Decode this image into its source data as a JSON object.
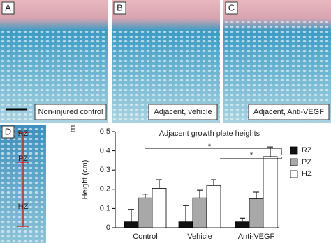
{
  "panels": [
    {
      "label": "A",
      "caption": "Non-injured control"
    },
    {
      "label": "B",
      "caption": "Adjacent, vehicle"
    },
    {
      "label": "C",
      "caption": "Adjacent, Anti-VEGF"
    },
    {
      "label": "D",
      "zones": [
        "RZ",
        "PZ",
        "HZ"
      ]
    },
    {
      "label": "E"
    }
  ],
  "chart_data": {
    "type": "bar",
    "title": "Adjacent growth plate heights",
    "y_label": "Height (cm)",
    "categories": [
      "Control",
      "Vehicle",
      "Anti-VEGF"
    ],
    "series": [
      {
        "name": "RZ",
        "color": "#111111",
        "values": [
          0.03,
          0.03,
          0.03
        ],
        "errors": [
          0.065,
          0.085,
          0.02
        ]
      },
      {
        "name": "PZ",
        "color": "#a8a8a8",
        "values": [
          0.155,
          0.155,
          0.15
        ],
        "errors": [
          0.02,
          0.04,
          0.035
        ]
      },
      {
        "name": "HZ",
        "color": "#ffffff",
        "values": [
          0.205,
          0.22,
          0.37
        ],
        "errors": [
          0.045,
          0.03,
          0.05
        ]
      }
    ],
    "ylim": [
      0,
      0.5
    ],
    "yticks": [
      0,
      0.1,
      0.2,
      0.3,
      0.4,
      0.5
    ],
    "annotations": [
      "*",
      "*"
    ]
  }
}
